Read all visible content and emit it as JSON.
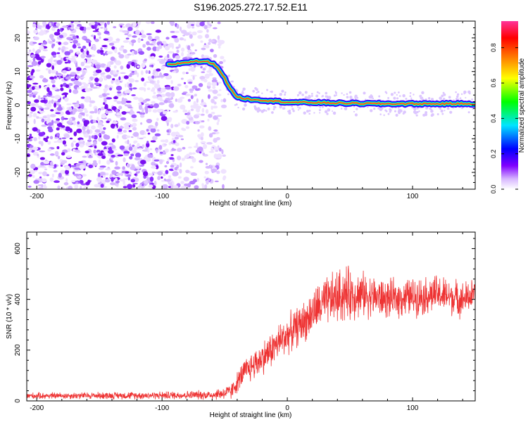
{
  "title": "S196.2025.272.17.52.E11",
  "chart_data": [
    {
      "type": "heatmap",
      "name": "spectrogram",
      "xlabel": "Height of straight line (km)",
      "ylabel": "Frequency (Hz)",
      "xlim": [
        -208,
        150
      ],
      "ylim": [
        -25,
        25
      ],
      "xticks": [
        -200,
        -100,
        0,
        100
      ],
      "xtick_labels": [
        "-200",
        "-100",
        "0",
        "100"
      ],
      "yticks": [
        -20,
        -10,
        0,
        10,
        20
      ],
      "ytick_labels": [
        "-20",
        "-10",
        "0",
        "10",
        "20"
      ],
      "colorbar": {
        "label": "Normalized spectral amplitude",
        "range": [
          0,
          0.95
        ],
        "ticks": [
          0.0,
          0.2,
          0.4,
          0.6,
          0.8
        ],
        "tick_labels": [
          "0.0",
          "0.2",
          "0.4",
          "0.6",
          "0.8"
        ],
        "colors": [
          "#ffffff",
          "#8000ff",
          "#0000ff",
          "#00ffff",
          "#00ff00",
          "#ffff00",
          "#ff8000",
          "#ff0000",
          "#ff3399"
        ]
      },
      "ridge": {
        "x": [
          -95,
          -85,
          -75,
          -65,
          -60,
          -55,
          -50,
          -45,
          -40,
          -35,
          -30,
          -20,
          -10,
          0,
          10,
          20,
          40,
          60,
          80,
          100,
          120,
          140,
          150
        ],
        "frequency": [
          12,
          12.5,
          13,
          13,
          12.5,
          11,
          8,
          4.5,
          2.5,
          2,
          1.8,
          1.5,
          1.2,
          0.9,
          0.8,
          0.8,
          0.6,
          0.5,
          0.4,
          0.4,
          0.4,
          0.4,
          0.4
        ]
      },
      "noise_region": [
        -208,
        -50
      ]
    },
    {
      "type": "line",
      "name": "snr",
      "xlabel": "Height of straight line (km)",
      "ylabel": "SNR (10 * v/v)",
      "xlim": [
        -208,
        150
      ],
      "ylim": [
        0,
        665
      ],
      "xticks": [
        -200,
        -100,
        0,
        100
      ],
      "xtick_labels": [
        "-200",
        "-100",
        "0",
        "100"
      ],
      "yticks": [
        0,
        200,
        400,
        600
      ],
      "ytick_labels": [
        "0",
        "200",
        "400",
        "600"
      ],
      "color": "#ee3333",
      "envelope": {
        "x": [
          -208,
          -100,
          -60,
          -45,
          -35,
          -25,
          -15,
          -5,
          5,
          15,
          25,
          35,
          45,
          60,
          80,
          100,
          120,
          140,
          150
        ],
        "mean": [
          20,
          22,
          24,
          35,
          110,
          150,
          190,
          240,
          280,
          320,
          370,
          400,
          420,
          420,
          400,
          410,
          420,
          400,
          420
        ],
        "amplitude": [
          10,
          12,
          15,
          25,
          40,
          50,
          55,
          60,
          60,
          65,
          75,
          80,
          90,
          70,
          60,
          60,
          60,
          55,
          50
        ]
      }
    }
  ]
}
